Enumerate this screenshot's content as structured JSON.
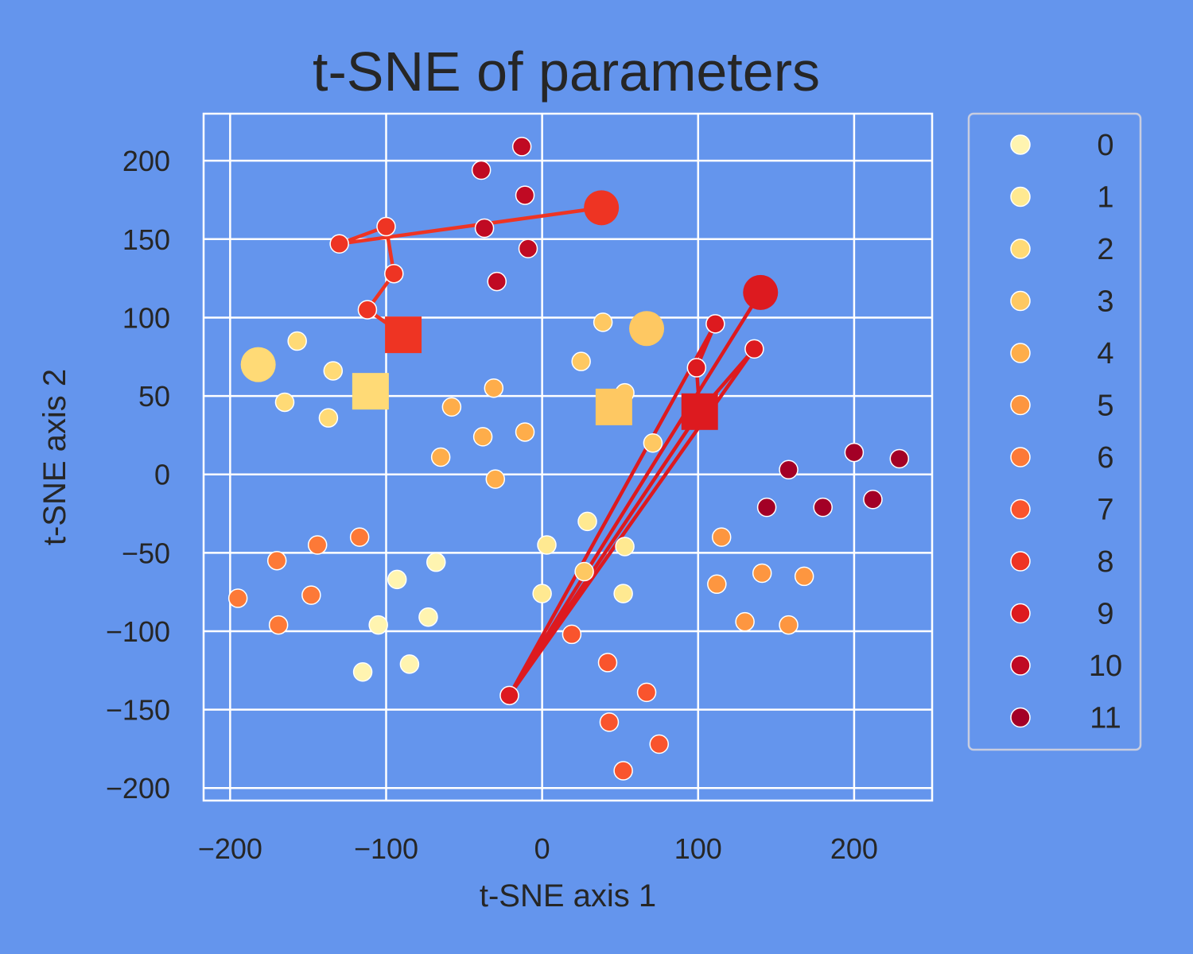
{
  "chart_data": {
    "type": "scatter",
    "title": "t-SNE of parameters",
    "xlabel": "t-SNE axis 1",
    "ylabel": "t-SNE axis 2",
    "xlim": [
      -217,
      250
    ],
    "ylim": [
      -208,
      230
    ],
    "xticks": [
      -200,
      -100,
      0,
      100,
      200
    ],
    "yticks": [
      -200,
      -150,
      -100,
      -50,
      0,
      50,
      100,
      150,
      200
    ],
    "xtick_labels": [
      "−200",
      "−100",
      "0",
      "100",
      "200"
    ],
    "ytick_labels": [
      "−200",
      "−150",
      "−100",
      "−50",
      "0",
      "50",
      "100",
      "150",
      "200"
    ],
    "grid": true,
    "legend_position": "outside-right",
    "background": "#6495ED",
    "series": [
      {
        "name": "0",
        "color": "#FFF4B0",
        "points": [
          [
            -115,
            -126
          ],
          [
            -85,
            -121
          ],
          [
            -105,
            -96
          ],
          [
            -93,
            -67
          ],
          [
            -73,
            -91
          ],
          [
            -68,
            -56
          ]
        ]
      },
      {
        "name": "1",
        "color": "#FFE991",
        "points": [
          [
            3,
            -45
          ],
          [
            29,
            -30
          ],
          [
            0,
            -76
          ],
          [
            53,
            -46
          ],
          [
            52,
            -76
          ]
        ]
      },
      {
        "name": "2",
        "color": "#FFDA76",
        "points": [
          [
            -182,
            70
          ],
          [
            -165,
            46
          ],
          [
            -157,
            85
          ],
          [
            -137,
            36
          ],
          [
            -134,
            66
          ],
          [
            -110,
            53
          ]
        ]
      },
      {
        "name": "3",
        "color": "#FEC862",
        "points": [
          [
            67,
            93
          ],
          [
            39,
            97
          ],
          [
            25,
            72
          ],
          [
            53,
            52
          ],
          [
            71,
            20
          ],
          [
            46,
            43
          ],
          [
            27,
            -62
          ]
        ]
      },
      {
        "name": "4",
        "color": "#FEAD4A",
        "points": [
          [
            -58,
            43
          ],
          [
            -31,
            55
          ],
          [
            -38,
            24
          ],
          [
            -11,
            27
          ],
          [
            -65,
            11
          ],
          [
            -30,
            -3
          ]
        ]
      },
      {
        "name": "5",
        "color": "#FD9640",
        "points": [
          [
            115,
            -40
          ],
          [
            112,
            -70
          ],
          [
            141,
            -63
          ],
          [
            168,
            -65
          ],
          [
            130,
            -94
          ],
          [
            158,
            -96
          ]
        ]
      },
      {
        "name": "6",
        "color": "#FD7937",
        "points": [
          [
            -195,
            -79
          ],
          [
            -170,
            -55
          ],
          [
            -144,
            -45
          ],
          [
            -117,
            -40
          ],
          [
            -148,
            -77
          ],
          [
            -169,
            -96
          ]
        ]
      },
      {
        "name": "7",
        "color": "#F9542D",
        "points": [
          [
            19,
            -102
          ],
          [
            42,
            -120
          ],
          [
            67,
            -139
          ],
          [
            43,
            -158
          ],
          [
            75,
            -172
          ],
          [
            52,
            -189
          ]
        ]
      },
      {
        "name": "8",
        "color": "#EE3423",
        "points": [
          [
            38,
            170
          ],
          [
            -130,
            147
          ],
          [
            -100,
            158
          ],
          [
            -95,
            128
          ],
          [
            -112,
            105
          ],
          [
            -89,
            89
          ]
        ],
        "path": [
          [
            38,
            170
          ],
          [
            -130,
            147
          ],
          [
            -100,
            158
          ],
          [
            -95,
            128
          ],
          [
            -112,
            105
          ],
          [
            -89,
            89
          ]
        ]
      },
      {
        "name": "9",
        "color": "#DD1A1F",
        "points": [
          [
            140,
            116
          ],
          [
            111,
            96
          ],
          [
            136,
            80
          ],
          [
            99,
            68
          ],
          [
            -21,
            -141
          ],
          [
            101,
            40
          ]
        ],
        "path": [
          [
            140,
            116
          ],
          [
            -21,
            -141
          ],
          [
            111,
            96
          ],
          [
            99,
            68
          ],
          [
            101,
            40
          ],
          [
            136,
            80
          ],
          [
            -21,
            -141
          ],
          [
            101,
            40
          ]
        ]
      },
      {
        "name": "10",
        "color": "#C00A23",
        "points": [
          [
            -13,
            209
          ],
          [
            -39,
            194
          ],
          [
            -11,
            178
          ],
          [
            -37,
            157
          ],
          [
            -9,
            144
          ],
          [
            -29,
            123
          ]
        ]
      },
      {
        "name": "11",
        "color": "#A30026",
        "points": [
          [
            158,
            3
          ],
          [
            200,
            14
          ],
          [
            229,
            10
          ],
          [
            144,
            -21
          ],
          [
            180,
            -21
          ],
          [
            212,
            -16
          ]
        ]
      }
    ]
  }
}
